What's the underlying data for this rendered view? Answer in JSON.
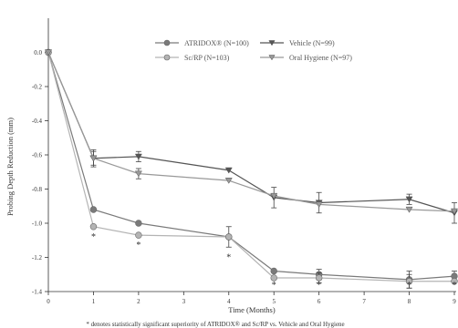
{
  "chart_data": {
    "type": "line",
    "xlabel": "Time (Months)",
    "ylabel": "Probing Depth Reduction (mm)",
    "xlim": [
      0,
      9
    ],
    "ylim": [
      -1.4,
      0.2
    ],
    "x_ticks": [
      "0",
      "1",
      "2",
      "3",
      "4",
      "5",
      "6",
      "7",
      "8",
      "9"
    ],
    "y_ticks": [
      "0.0",
      "-0.2",
      "-0.4",
      "-0.6",
      "-0.8",
      "-1.0",
      "-1.2",
      "-1.4"
    ],
    "legend_position": "top-right",
    "footnote": "* denotes statistically significant superiority of ATRIDOX® and Sc/RP vs. Vehicle and Oral Hygiene",
    "significance_marker": "*",
    "significant_x": [
      1,
      2,
      4,
      5,
      6,
      8,
      9
    ],
    "series": [
      {
        "name": "ATRIDOX® (N=100)",
        "marker": "circle",
        "color": "#7a7a7a",
        "x": [
          0,
          1,
          2,
          4,
          5,
          6,
          8,
          9
        ],
        "y": [
          0.0,
          -0.92,
          -1.0,
          -1.08,
          -1.28,
          -1.3,
          -1.33,
          -1.31
        ],
        "err": [
          0,
          0,
          0,
          0,
          0,
          0.03,
          0.05,
          0.03
        ]
      },
      {
        "name": "Sc/RP (N=103)",
        "marker": "circle",
        "color": "#b4b4b4",
        "x": [
          0,
          1,
          2,
          4,
          5,
          6,
          8,
          9
        ],
        "y": [
          0.0,
          -1.02,
          -1.07,
          -1.08,
          -1.32,
          -1.32,
          -1.34,
          -1.34
        ],
        "err": [
          0,
          0,
          0,
          0.06,
          0,
          0.03,
          0.04,
          0
        ]
      },
      {
        "name": "Vehicle (N=99)",
        "marker": "triangle-down",
        "color": "#555555",
        "x": [
          0,
          1,
          2,
          4,
          5,
          6,
          8,
          9
        ],
        "y": [
          0.0,
          -0.62,
          -0.61,
          -0.69,
          -0.85,
          -0.88,
          -0.86,
          -0.94
        ],
        "err": [
          0,
          0.04,
          0.03,
          0,
          0.06,
          0.06,
          0.03,
          0.06
        ]
      },
      {
        "name": "Oral Hygiene (N=97)",
        "marker": "triangle-down",
        "color": "#999999",
        "x": [
          0,
          1,
          2,
          4,
          5,
          6,
          8,
          9
        ],
        "y": [
          0.0,
          -0.62,
          -0.71,
          -0.75,
          -0.84,
          -0.89,
          -0.92,
          -0.93
        ],
        "err": [
          0,
          0.05,
          0.03,
          0,
          0,
          0,
          0,
          0
        ]
      }
    ]
  }
}
